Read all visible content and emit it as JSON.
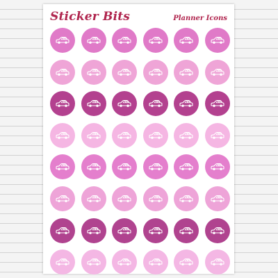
{
  "sheet": {
    "title": "Sticker Bits",
    "subtitle": "Planner Icons"
  },
  "stickers": {
    "icon": "car-icon",
    "columns": 6,
    "row_colors": [
      "#e07ac8",
      "#efa5d7",
      "#b3418f",
      "#f5b6e3",
      "#e47fcd",
      "#eea4d8",
      "#b0438f",
      "#f4b7e4"
    ]
  }
}
